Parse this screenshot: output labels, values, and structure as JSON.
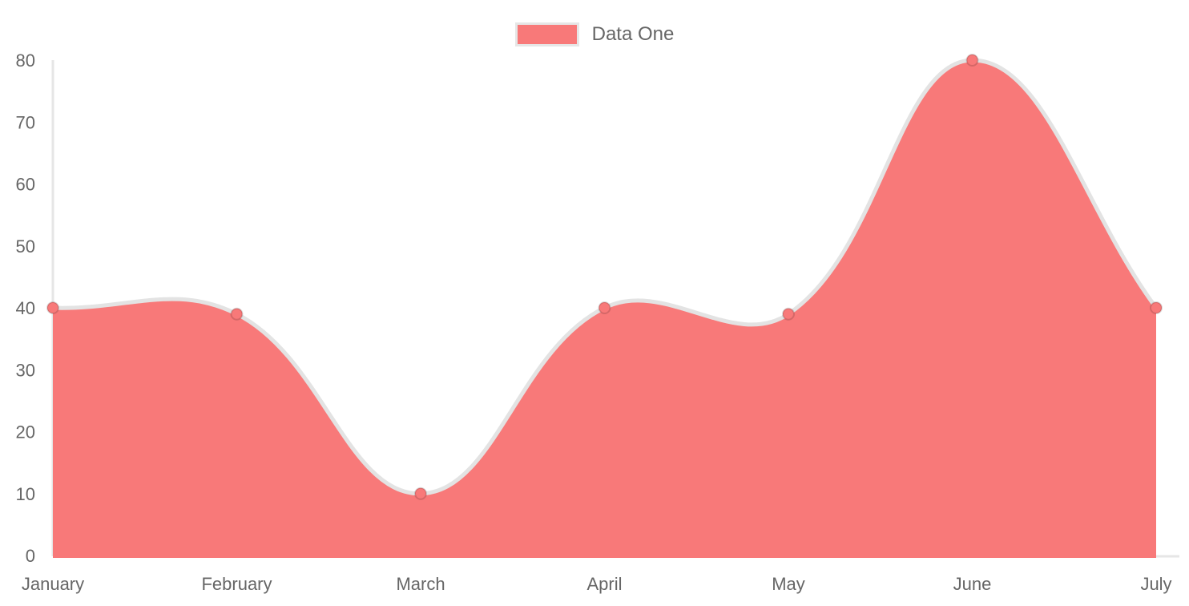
{
  "legend": {
    "items": [
      {
        "label": "Data One",
        "color": "#f87979"
      }
    ]
  },
  "chart_data": {
    "type": "area",
    "title": "",
    "categories": [
      "January",
      "February",
      "March",
      "April",
      "May",
      "June",
      "July"
    ],
    "series": [
      {
        "name": "Data One",
        "values": [
          40,
          39,
          10,
          40,
          39,
          80,
          40
        ]
      }
    ],
    "xlabel": "",
    "ylabel": "",
    "ylim": [
      0,
      80
    ],
    "yticks": [
      0,
      10,
      20,
      30,
      40,
      50,
      60,
      70,
      80
    ],
    "grid": false,
    "legend_position": "top",
    "line_tension": 0.4,
    "colors": {
      "fill": "#f87979",
      "line": "#e3e3e3",
      "point_fill": "#f87979",
      "point_border": "rgba(0,0,0,0.14)",
      "axis": "#e6e6e6",
      "tick_text": "#666666"
    }
  }
}
